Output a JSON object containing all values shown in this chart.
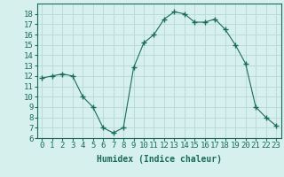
{
  "x": [
    0,
    1,
    2,
    3,
    4,
    5,
    6,
    7,
    8,
    9,
    10,
    11,
    12,
    13,
    14,
    15,
    16,
    17,
    18,
    19,
    20,
    21,
    22,
    23
  ],
  "y": [
    11.8,
    12.0,
    12.2,
    12.0,
    10.0,
    9.0,
    7.0,
    6.5,
    7.0,
    12.8,
    15.2,
    16.0,
    17.5,
    18.2,
    18.0,
    17.2,
    17.2,
    17.5,
    16.5,
    15.0,
    13.2,
    9.0,
    8.0,
    7.2
  ],
  "line_color": "#1a6b5a",
  "marker": "+",
  "marker_size": 4,
  "marker_lw": 1.0,
  "bg_color": "#d6f0ee",
  "grid_color": "#b8d8d4",
  "xlabel": "Humidex (Indice chaleur)",
  "xlabel_fontsize": 7,
  "ylim": [
    6,
    19
  ],
  "xlim": [
    -0.5,
    23.5
  ],
  "yticks": [
    6,
    7,
    8,
    9,
    10,
    11,
    12,
    13,
    14,
    15,
    16,
    17,
    18
  ],
  "xticks": [
    0,
    1,
    2,
    3,
    4,
    5,
    6,
    7,
    8,
    9,
    10,
    11,
    12,
    13,
    14,
    15,
    16,
    17,
    18,
    19,
    20,
    21,
    22,
    23
  ],
  "tick_fontsize": 6.5
}
